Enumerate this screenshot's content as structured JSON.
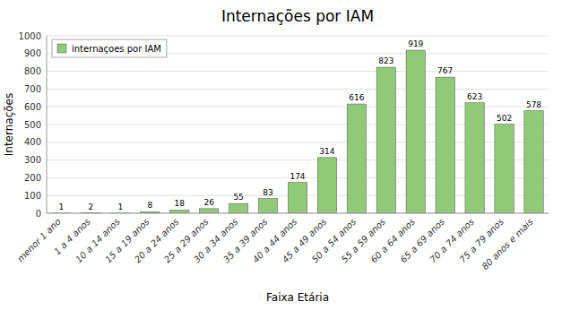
{
  "chart_data": {
    "type": "bar",
    "title": "Internações por IAM",
    "xlabel": "Faixa Etária",
    "ylabel": "Internações",
    "categories": [
      "menor 1 ano",
      "1 a 4 anos",
      "10 a 14 anos",
      "15 a 19 anos",
      "20 a 24 anos",
      "25 a 29 anos",
      "30 a 34 anos",
      "35 a 39 anos",
      "40 a 44 anos",
      "45 a 49 anos",
      "50 a 54 anos",
      "55 a 59 anos",
      "60 a 64 anos",
      "65 a 69 anos",
      "70 a 74 anos",
      "75 a 79 anos",
      "80 anos e mais"
    ],
    "series": [
      {
        "name": "internaçoes por IAM",
        "color": "#90c978",
        "values": [
          1,
          2,
          1,
          8,
          18,
          26,
          55,
          83,
          174,
          314,
          616,
          823,
          919,
          767,
          623,
          502,
          578
        ]
      }
    ],
    "ylim": [
      0,
      1000
    ],
    "yticks": [
      0,
      100,
      200,
      300,
      400,
      500,
      600,
      700,
      800,
      900,
      1000
    ],
    "grid": true,
    "legend": "upper-left",
    "data_labels": true
  }
}
